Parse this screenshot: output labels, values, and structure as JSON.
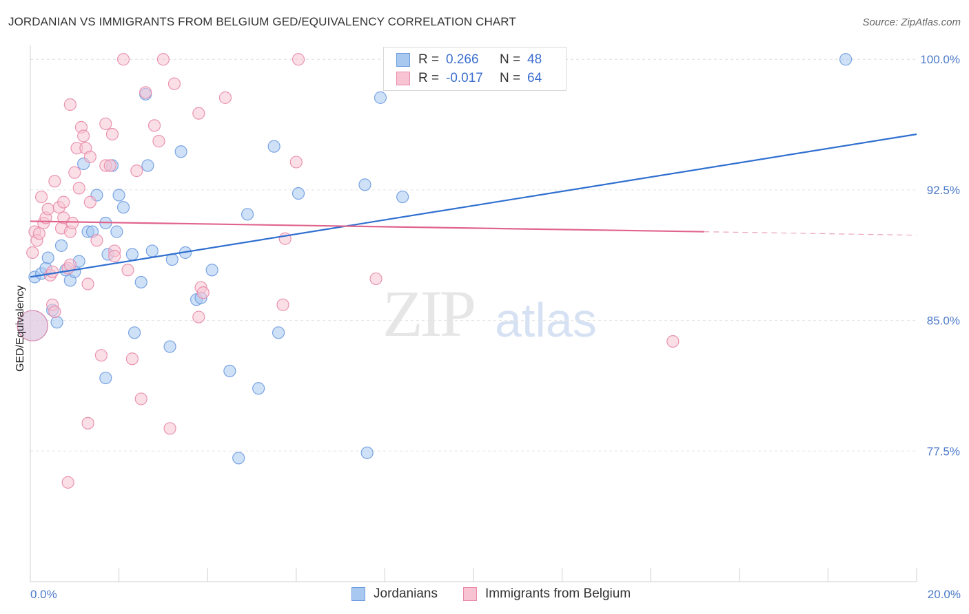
{
  "title": "JORDANIAN VS IMMIGRANTS FROM BELGIUM GED/EQUIVALENCY CORRELATION CHART",
  "source": "Source: ZipAtlas.com",
  "watermark": {
    "zip": "ZIP",
    "atlas": "atlas"
  },
  "legend": {
    "rows": [
      {
        "r_label": "R =",
        "r_value": "0.266",
        "n_label": "N =",
        "n_value": "48",
        "color": "#a8c8f0",
        "border": "#6d9be0"
      },
      {
        "r_label": "R =",
        "r_value": "-0.017",
        "n_label": "N =",
        "n_value": "64",
        "color": "#f8c4d4",
        "border": "#e88aa8"
      }
    ]
  },
  "bottom_legend": [
    {
      "label": "Jordanians",
      "color": "#a8c8f0",
      "border": "#6d9be0"
    },
    {
      "label": "Immigrants from Belgium",
      "color": "#f8c4d4",
      "border": "#e88aa8"
    }
  ],
  "chart_data": {
    "type": "scatter",
    "title": "JORDANIAN VS IMMIGRANTS FROM BELGIUM GED/EQUIVALENCY CORRELATION CHART",
    "xlabel": "",
    "ylabel": "GED/Equivalency",
    "xlim": [
      0,
      20
    ],
    "ylim": [
      70,
      100.8
    ],
    "x_tick_labels": [
      {
        "value": 0,
        "label": "0.0%"
      },
      {
        "value": 20,
        "label": "20.0%"
      }
    ],
    "y_tick_labels": [
      {
        "value": 100,
        "label": "100.0%"
      },
      {
        "value": 92.5,
        "label": "92.5%"
      },
      {
        "value": 85,
        "label": "85.0%"
      },
      {
        "value": 77.5,
        "label": "77.5%"
      }
    ],
    "grid": "horizontal dashed",
    "series": [
      {
        "name": "Jordanians",
        "color": "#6d9be0",
        "fill": "#a8c8f0",
        "trend": {
          "x0": 0,
          "y0": 87.5,
          "x1": 20,
          "y1": 95.7,
          "color": "#2f6fd0",
          "style": "solid"
        },
        "points": [
          [
            0.1,
            87.5
          ],
          [
            0.25,
            87.7
          ],
          [
            0.35,
            88.0
          ],
          [
            0.4,
            88.6
          ],
          [
            0.5,
            85.6
          ],
          [
            0.6,
            84.9
          ],
          [
            0.7,
            89.3
          ],
          [
            0.8,
            87.9
          ],
          [
            0.9,
            87.3
          ],
          [
            1.0,
            87.8
          ],
          [
            1.1,
            88.4
          ],
          [
            1.2,
            94.0
          ],
          [
            1.3,
            90.1
          ],
          [
            1.4,
            90.1
          ],
          [
            1.5,
            92.2
          ],
          [
            1.7,
            81.7
          ],
          [
            1.7,
            90.6
          ],
          [
            1.75,
            88.8
          ],
          [
            1.85,
            93.9
          ],
          [
            1.95,
            90.1
          ],
          [
            2.0,
            92.2
          ],
          [
            2.1,
            91.5
          ],
          [
            2.3,
            88.8
          ],
          [
            2.35,
            84.3
          ],
          [
            2.5,
            87.2
          ],
          [
            2.6,
            98.0
          ],
          [
            2.65,
            93.9
          ],
          [
            2.75,
            89.0
          ],
          [
            3.15,
            83.5
          ],
          [
            3.2,
            88.5
          ],
          [
            3.4,
            94.7
          ],
          [
            3.5,
            88.9
          ],
          [
            3.75,
            86.2
          ],
          [
            3.85,
            86.3
          ],
          [
            4.1,
            87.9
          ],
          [
            4.5,
            82.1
          ],
          [
            4.7,
            77.1
          ],
          [
            4.9,
            91.1
          ],
          [
            5.15,
            81.1
          ],
          [
            5.5,
            95.0
          ],
          [
            5.6,
            84.3
          ],
          [
            6.05,
            92.3
          ],
          [
            7.6,
            77.4
          ],
          [
            7.55,
            92.8
          ],
          [
            7.9,
            97.8
          ],
          [
            8.4,
            92.1
          ],
          [
            18.4,
            100.0
          ],
          [
            0.05,
            84.7
          ]
        ]
      },
      {
        "name": "Immigrants from Belgium",
        "color": "#e88aa8",
        "fill": "#f8c4d4",
        "trend": {
          "x0": 0,
          "y0": 90.7,
          "x1": 15.2,
          "y1": 90.1,
          "color": "#e0648c",
          "style": "solid",
          "dash_to_x": 20,
          "dash_to_y": 89.9
        },
        "points": [
          [
            0.05,
            88.9
          ],
          [
            0.1,
            90.1
          ],
          [
            0.15,
            89.6
          ],
          [
            0.2,
            90.0
          ],
          [
            0.25,
            92.1
          ],
          [
            0.3,
            90.6
          ],
          [
            0.35,
            90.9
          ],
          [
            0.4,
            91.4
          ],
          [
            0.45,
            87.6
          ],
          [
            0.5,
            87.8
          ],
          [
            0.5,
            85.9
          ],
          [
            0.55,
            93.0
          ],
          [
            0.55,
            85.5
          ],
          [
            0.65,
            91.5
          ],
          [
            0.7,
            90.3
          ],
          [
            0.75,
            90.9
          ],
          [
            0.75,
            91.8
          ],
          [
            0.85,
            88.0
          ],
          [
            0.85,
            75.7
          ],
          [
            0.9,
            88.2
          ],
          [
            0.9,
            90.1
          ],
          [
            0.95,
            90.6
          ],
          [
            0.9,
            97.4
          ],
          [
            1.0,
            93.5
          ],
          [
            1.05,
            94.9
          ],
          [
            1.1,
            92.6
          ],
          [
            1.15,
            96.1
          ],
          [
            1.2,
            95.6
          ],
          [
            1.25,
            94.9
          ],
          [
            1.3,
            87.1
          ],
          [
            1.3,
            79.1
          ],
          [
            1.35,
            91.8
          ],
          [
            1.35,
            94.4
          ],
          [
            1.5,
            89.6
          ],
          [
            1.6,
            83.0
          ],
          [
            1.7,
            93.9
          ],
          [
            1.7,
            96.3
          ],
          [
            1.8,
            93.9
          ],
          [
            1.85,
            95.7
          ],
          [
            1.9,
            89.0
          ],
          [
            1.9,
            88.7
          ],
          [
            2.1,
            100.0
          ],
          [
            2.2,
            87.9
          ],
          [
            2.3,
            82.8
          ],
          [
            2.4,
            93.6
          ],
          [
            2.5,
            80.5
          ],
          [
            2.6,
            98.1
          ],
          [
            2.8,
            96.2
          ],
          [
            2.9,
            95.3
          ],
          [
            3.0,
            100.0
          ],
          [
            3.15,
            78.8
          ],
          [
            3.25,
            98.6
          ],
          [
            3.8,
            85.2
          ],
          [
            3.8,
            96.9
          ],
          [
            3.85,
            86.9
          ],
          [
            3.9,
            86.6
          ],
          [
            4.4,
            97.8
          ],
          [
            5.7,
            85.9
          ],
          [
            5.75,
            89.7
          ],
          [
            6.0,
            94.1
          ],
          [
            6.05,
            100.0
          ],
          [
            7.8,
            87.4
          ],
          [
            14.5,
            83.8
          ],
          [
            0.05,
            84.7
          ]
        ]
      }
    ]
  }
}
